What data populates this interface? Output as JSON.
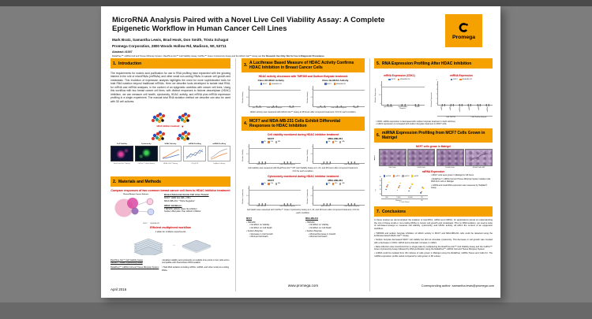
{
  "colors": {
    "accent": "#F5A201",
    "red": "#CC0000",
    "blue": "#4472C4",
    "orange": "#ED7D31",
    "gray": "#A5A5A5",
    "yellow": "#FFC000"
  },
  "poster": {
    "title_line1": "MicroRNA Analysis Paired with a Novel Live Cell Viability Assay: A Complete",
    "title_line2": "Epigenetic Workflow in Human Cancer Cell Lines",
    "authors": "Mark Bratz, Samantha Lewis, Brad Hook, Don Smith, Trista Schagat",
    "affiliation": "Promega Corporation, 2800 Woods Hollow Rd, Madison, WI, 53711",
    "abstract": "Abstract #1007",
    "disclaimer_note": "ReliaPrep™ miRNA Cell and Tissue Miniprep System, RealTime-Glo™ Cell Viability Assay, CellTox™ Green Cytotoxicity Assay and the HDAC-Glo™ Assay are ",
    "disclaimer_bold": "For Research Use Only. Not for Use in Diagnostic Procedures.",
    "logo_word": "Promega",
    "footer": {
      "date": "April 2016",
      "website": "www.promega.com",
      "corresponding": "Corresponding author: samantha.lewis@promega.com"
    }
  },
  "sections": {
    "s1": {
      "num": "1.",
      "header": "Introduction",
      "body": "The requirements for nucleic acid purification for use in RNA profiling have expanded with the growing interest in the role of microRNAs (miRNAs) and other small non-coding RNAs in cancer cell growth and metastasis. This evolution of expression analysis highlights the need for more sophisticated tools for total RNA isolation beyond traditional mRNAs. Here we describe tools developed to isolate total RNA, for mRNA and miRNA analyses, in the context of an epigenetic workflow with cancer cell lines. Using this workflow with two breast cancer cell lines, with distinct responses to histone deacetylase (HDAC) inhibition, we can measure cell health, cytotoxicity, HDAC activity, and mRNA plus miRNA expression profiling in a single experiment. The manual total RNA isolation method we describe can also be used with 3D cell cultures.",
      "workflow": {
        "treatment_label": "HDAC inhibitor treatment",
        "branch_labels": [
          "Cell Viability",
          "Cytotoxicity",
          "HDAC Activity",
          "mRNA Profiling",
          "miRNA Profiling"
        ],
        "captions": [
          "RealTime-Glo™ Assay",
          "CellTox™ Green Assay",
          "HDAC-Glo™ Assay",
          "RT-qPCR",
          "TaqMan® Assay"
        ]
      }
    },
    "s2": {
      "num": "2.",
      "header": "Materials and Methods",
      "compare_heading": "Compare responses of two common breast cancer cell lines to HDAC inhibitor treatment",
      "venn_title": "Clinical Breast Cancer Subsets",
      "venn_labels": [
        "MCF7",
        "MDA-MB-231"
      ],
      "cell_lines_title": "Breast Adenocarcinoma Cell Lines Tested:",
      "cell_lines": [
        "MCF7: HER low, ER+, PR+",
        "MDA-MB-231: \"Triple Negative\""
      ],
      "inhibitors_title": "HDAC Inhibitors:",
      "inhibitors": [
        "TMP269: HDAC class IIa inhibitor",
        "Sodium Butyrate: Pan HDAC inhibitor"
      ],
      "workflow_heading": "Efficient multiplexed workflow",
      "plate_note": "1 plate for multiple experiments",
      "products": [
        {
          "names": [
            "RealTime-Glo™ Cell Viability Assay",
            "CellTox™ Green Cytotoxicity Assay"
          ],
          "desc": "Enables viability and cytotoxicity at multiple time points in live cells and is compatible with downstream RNA isolation"
        },
        {
          "names": [
            "ReliaPrep™ miRNA Cell and Tissue Miniprep System"
          ],
          "desc": "Total RNA isolation including mRNA, miRNA, and other small non-coding RNAs"
        }
      ]
    },
    "s3": {
      "num": "3.",
      "header": "A Luciferase Based Measure of HDAC Activity Confirms HDAC Inhibition in Breast Cancer Cells",
      "subheading": "HDAC activity decreases with TMP269 and Sodium Butyrate treatment",
      "caption": "HDAC activity was measured with HDAC-Glo™ Assay at 48 hours after compound treatment. N=2 for each condition."
    },
    "s4": {
      "num": "4.",
      "header": "MCF7 and MDA-MB-231 Cells Exhibit Differential Responses to HDAC Inhibition",
      "viability_heading": "Cell viability monitored during HDAC inhibitor treatment",
      "viability_caption": "Cell viability was measured with RealTime-Glo™ MT Cell Viability Assay at 4, 24, and 48 hours after compound treatment. N=4 for each condition.",
      "cytotox_heading": "Cytotoxicity monitored during HDAC inhibitor treatment",
      "cytotox_caption": "Cell death was measured with CellTox™ Green Cytotoxicity Assay at 4, 24, and 48 hours after compound treatment. N=4 for each condition.",
      "summary": {
        "mcf7": {
          "title": "MCF7",
          "groups": [
            {
              "name": "TMP269",
              "items": [
                "No Effect on Viability",
                "No Effect on Cell Death"
              ]
            },
            {
              "name": "Sodium Butyrate",
              "items": [
                "Decrease in Cell Growth",
                "Minimal Cell Death"
              ]
            }
          ]
        },
        "mda": {
          "title": "MDA-MB-231",
          "groups": [
            {
              "name": "TMP269",
              "items": [
                "No Effect on Viability",
                "No Effect on Cell Death"
              ]
            },
            {
              "name": "Sodium Butyrate",
              "items": [
                "Minimal Decrease in Growth",
                "Minimal Cell Death"
              ]
            }
          ]
        }
      }
    },
    "s5": {
      "num": "5.",
      "header": "RNA Expression Profiling After HDAC Inhibition",
      "chart1_heading": "mRNA Expression (CDK1)",
      "chart2_heading": "miRNA Expression",
      "bullets": [
        "CDK1 mRNA expression is decreased with sodium butyrate treatment in both cell lines",
        "miR21 expression is increased with sodium butyrate treatment in MCF7 cells"
      ]
    },
    "s6": {
      "num": "6.",
      "header": "miRNA Expression Profiling from MCF7 Cells Grown in Matrigel",
      "matrigel_heading": "MCF7 cells grown in Matrigel",
      "row_label": "MCF7",
      "image_labels": [
        "500 Cells",
        "2,000 Cells",
        "10,000 Cells",
        "10,000 Cells 40X"
      ],
      "mirna_heading": "miRNA Expression",
      "bullets": [
        "MCF7 cells were grown in Matrigel for 48 hours",
        "ReliaPrep™ miRNA Cell and Tissue Miniprep System isolates total RNA from cells in Matrigel",
        "miRNA and small RNA expression was measured by TaqMan® Assay"
      ]
    },
    "s7": {
      "num": "7.",
      "header": "Conclusions",
      "body": "In these studies we demonstrated the isolation of total RNA, mRNA and miRNA, for applications aimed at understanding the role of these small or non-coding RNAs in cancer cell growth and metastasis. Prior to RNA isolation, we used a suite of cell-based assays to measure cell viability, cytotoxicity, and HDAC activity, all within the context of an epigenetic workflow.",
      "bullets": [
        "TMP269 and sodium butyrate inhibition of HDAC activity in MCF7 and MDA-MB-231 cells could be detected using the luciferase-based HDAC-Glo™ Assay.",
        "Sodium butyrate decreased MCF7 cell viability but did not stimulate cytotoxicity. This decrease in cell growth was coupled with a decrease in CDK1 mRNA and a dramatic increase in miR21.",
        "Data collection was maximized from a single plate by multiplexing the RealTime-Glo™ Cell Viability Assay and the CellTox™ Green Cytotoxicity Assay followed by RNA purification using the ReliaPrep™ miRNA Cell and Tissue Miniprep System.",
        "miRNA could be isolated from 3D cultures of cells grown in Matrigel using the ReliaPrep miRNA Tissue and Cells Kit. The miRNA expression profile varied compared to cells grown in 2D culture."
      ]
    }
  },
  "chart_data": {
    "hdac12": {
      "type": "bar",
      "title": "Class I/II HDAC Activity",
      "ylabel": "Relative Activity",
      "ylim": [
        0,
        1.3
      ],
      "yticks": [
        0,
        0.5,
        1
      ],
      "refline": 1,
      "h": 26,
      "categories": [
        "1μM TMP269",
        "5mM Sodium Butyrate",
        "DMSO"
      ],
      "series": [
        {
          "name": "MCF7",
          "color": "#4472C4",
          "values": [
            0.35,
            1.0,
            0.95
          ]
        },
        {
          "name": "MDA-MB-231",
          "color": "#ED7D31",
          "values": [
            0.4,
            0.5,
            0.95
          ]
        }
      ]
    },
    "hdac2a": {
      "type": "bar",
      "title": "Class IIa HDAC Activity",
      "ylabel": "Relative Activity",
      "ylim": [
        0,
        1.3
      ],
      "yticks": [
        0,
        0.5,
        1
      ],
      "refline": 1,
      "h": 26,
      "categories": [
        "1μM TMP269",
        "5mM Sodium Butyrate",
        "DMSO"
      ],
      "series": [
        {
          "name": "MCF7",
          "color": "#4472C4",
          "values": [
            0.9,
            0.35,
            1.0
          ]
        },
        {
          "name": "MDA-MB-231",
          "color": "#ED7D31",
          "values": [
            1.05,
            0.25,
            1.05
          ]
        }
      ]
    },
    "viab_mcf7": {
      "type": "bar",
      "title": "MCF7",
      "ylabel": "Relative Viability",
      "ylim": [
        0,
        1.3
      ],
      "yticks": [
        0,
        0.5,
        1
      ],
      "refline": 1,
      "h": 24,
      "categories": [
        "1μM TMP269",
        "5mM Sodium Butyrate"
      ],
      "series": [
        {
          "name": "4h",
          "color": "#4472C4",
          "values": [
            0.95,
            1.0
          ]
        },
        {
          "name": "24h",
          "color": "#ED7D31",
          "values": [
            1.0,
            0.6
          ]
        },
        {
          "name": "48h",
          "color": "#A5A5A5",
          "values": [
            1.1,
            0.35
          ]
        }
      ]
    },
    "viab_mda": {
      "type": "bar",
      "title": "MDA-MB-231",
      "ylabel": "Relative Viability",
      "ylim": [
        0,
        1.3
      ],
      "yticks": [
        0,
        0.5,
        1
      ],
      "refline": 1,
      "h": 24,
      "categories": [
        "1μM TMP269",
        "5mM Sodium Butyrate"
      ],
      "series": [
        {
          "name": "4h",
          "color": "#4472C4",
          "values": [
            1.05,
            1.0
          ]
        },
        {
          "name": "24h",
          "color": "#ED7D31",
          "values": [
            1.0,
            0.85
          ]
        },
        {
          "name": "48h",
          "color": "#A5A5A5",
          "values": [
            0.95,
            0.8
          ]
        }
      ]
    },
    "ctx_mcf7": {
      "type": "bar",
      "title": "MCF7",
      "ylabel": "Relative Cytotoxicity",
      "ylim": [
        0,
        1.3
      ],
      "yticks": [
        0,
        0.5,
        1
      ],
      "refline": 1,
      "h": 24,
      "categories": [
        "1μM TMP269",
        "5mM Sodium Butyrate"
      ],
      "series": [
        {
          "name": "4h",
          "color": "#4472C4",
          "values": [
            1.0,
            1.0
          ]
        },
        {
          "name": "24h",
          "color": "#ED7D31",
          "values": [
            1.05,
            1.0
          ]
        },
        {
          "name": "48h",
          "color": "#A5A5A5",
          "values": [
            1.0,
            1.05
          ]
        }
      ]
    },
    "ctx_mda": {
      "type": "bar",
      "title": "MDA-MB-231",
      "ylabel": "Relative Cytotoxicity",
      "ylim": [
        0,
        1.3
      ],
      "yticks": [
        0,
        0.5,
        1
      ],
      "refline": 1,
      "h": 24,
      "categories": [
        "1μM TMP269",
        "5mM Sodium Butyrate"
      ],
      "series": [
        {
          "name": "4h",
          "color": "#4472C4",
          "values": [
            0.95,
            0.9
          ]
        },
        {
          "name": "24h",
          "color": "#ED7D31",
          "values": [
            1.0,
            0.95
          ]
        },
        {
          "name": "48h",
          "color": "#A5A5A5",
          "values": [
            1.05,
            1.1
          ]
        }
      ]
    },
    "cdk1": {
      "type": "bar",
      "ylabel": "Relative Expression",
      "ylim": [
        0,
        1.3
      ],
      "yticks": [
        0,
        0.5,
        1
      ],
      "refline": 1,
      "h": 30,
      "categories": [
        "1μM TMP269",
        "5mM Sodium Butyrate",
        "DMSO"
      ],
      "series": [
        {
          "name": "MCF7",
          "color": "#4472C4",
          "values": [
            1.0,
            0.55,
            1.0
          ]
        },
        {
          "name": "MDA-MB-231",
          "color": "#ED7D31",
          "values": [
            0.9,
            0.7,
            1.0
          ]
        }
      ]
    },
    "mirna": {
      "type": "bar",
      "ylabel": "Relative Expression",
      "ylim": [
        0,
        5
      ],
      "yticks": [
        0,
        1,
        2,
        3,
        4,
        5
      ],
      "h": 30,
      "barw": 2.2,
      "rotate": true,
      "categories": [
        "miR21",
        "miR16",
        "miR29a",
        "miR21",
        "miR16",
        "miR29a"
      ],
      "xgroups": [
        {
          "label": "1μM TMP269",
          "span": 3
        },
        {
          "label": "5 mM Sodium Butyrate",
          "span": 3
        }
      ],
      "series": [
        {
          "name": "MCF7",
          "color": "#4472C4",
          "values": [
            1.0,
            0.8,
            0.7,
            4.6,
            0.9,
            0.6
          ]
        },
        {
          "name": "MDA-MB-231",
          "color": "#ED7D31",
          "values": [
            0.9,
            0.7,
            0.6,
            0.8,
            0.7,
            0.5
          ]
        }
      ]
    },
    "matrigel": {
      "type": "scatter",
      "ylabel": "Cq",
      "ylim": [
        20,
        40
      ],
      "yticks": [
        20,
        25,
        30,
        35,
        40
      ],
      "h": 22,
      "xlabel": "# Cells Plated",
      "categories": [
        "500",
        "2,000",
        "10,000",
        "2D"
      ],
      "xgroups": [
        {
          "label": "Matrigel",
          "span": 3
        },
        {
          "label": "2D",
          "span": 1
        }
      ],
      "series": [
        {
          "name": "miR16",
          "color": "#4472C4",
          "values": [
            27,
            26,
            25,
            23
          ]
        },
        {
          "name": "miR21",
          "color": "#ED7D31",
          "values": [
            30,
            29,
            28,
            24
          ]
        },
        {
          "name": "miR23",
          "color": "#A5A5A5",
          "values": [
            32,
            31,
            30,
            29
          ]
        },
        {
          "name": "miR29",
          "color": "#FFC000",
          "values": [
            35,
            34,
            33,
            28
          ]
        }
      ]
    }
  }
}
